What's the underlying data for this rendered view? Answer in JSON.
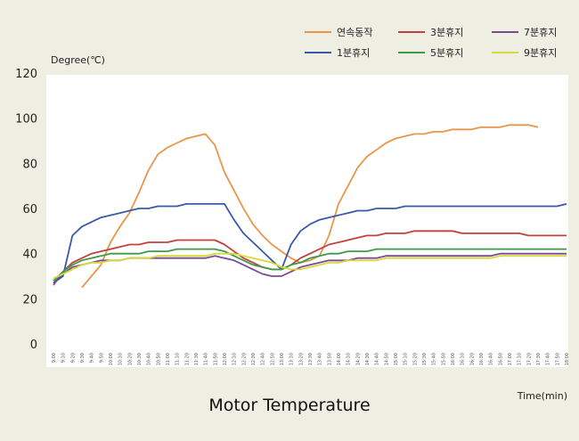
{
  "chart_data": {
    "type": "line",
    "title": "Motor Temperature",
    "ylabel": "Degree(℃)",
    "xlabel": "Time(min)",
    "ylim": [
      0,
      120
    ],
    "yticks": [
      0,
      20,
      40,
      60,
      80,
      100,
      120
    ],
    "grid": false,
    "legend_position": "top-right",
    "x": [
      "9:00",
      "9:10",
      "9:20",
      "9:30",
      "9:40",
      "9:50",
      "10:00",
      "10:10",
      "10:20",
      "10:30",
      "10:40",
      "10:50",
      "11:00",
      "11:10",
      "11:20",
      "11:30",
      "11:40",
      "11:50",
      "12:00",
      "12:10",
      "12:20",
      "12:30",
      "12:40",
      "12:50",
      "13:00",
      "13:10",
      "13:20",
      "13:30",
      "13:40",
      "13:50",
      "14:00",
      "14:10",
      "14:20",
      "14:30",
      "14:40",
      "14:50",
      "15:00",
      "15:10",
      "15:20",
      "15:30",
      "15:40",
      "15:50",
      "16:00",
      "16:10",
      "16:20",
      "16:30",
      "16:40",
      "16:50",
      "17:00",
      "17:10",
      "17:20",
      "17:30",
      "17:40",
      "17:50",
      "18:00"
    ],
    "series": [
      {
        "name": "연속동작",
        "color": "#e8964a",
        "values": [
          null,
          null,
          null,
          25,
          30,
          35,
          45,
          52,
          58,
          67,
          77,
          84,
          87,
          89,
          91,
          92,
          93,
          88,
          76,
          68,
          60,
          53,
          48,
          44,
          41,
          38,
          36,
          37,
          39,
          48,
          62,
          70,
          78,
          83,
          86,
          89,
          91,
          92,
          93,
          93,
          94,
          94,
          95,
          95,
          95,
          96,
          96,
          96,
          97,
          97,
          97,
          96,
          null,
          null,
          null
        ]
      },
      {
        "name": "3분휴지",
        "color": "#c4403c",
        "values": [
          26,
          32,
          36,
          38,
          40,
          41,
          42,
          43,
          44,
          44,
          45,
          45,
          45,
          46,
          46,
          46,
          46,
          46,
          44,
          41,
          38,
          36,
          34,
          33,
          33,
          35,
          38,
          40,
          42,
          44,
          45,
          46,
          47,
          48,
          48,
          49,
          49,
          49,
          50,
          50,
          50,
          50,
          50,
          49,
          49,
          49,
          49,
          49,
          49,
          49,
          48,
          48,
          48,
          48,
          48
        ]
      },
      {
        "name": "7분휴지",
        "color": "#7a4a95",
        "values": [
          27,
          31,
          34,
          35,
          36,
          37,
          37,
          37,
          38,
          38,
          38,
          38,
          38,
          38,
          38,
          38,
          38,
          39,
          38,
          37,
          35,
          33,
          31,
          30,
          30,
          32,
          34,
          35,
          36,
          37,
          37,
          37,
          38,
          38,
          38,
          39,
          39,
          39,
          39,
          39,
          39,
          39,
          39,
          39,
          39,
          39,
          39,
          40,
          40,
          40,
          40,
          40,
          40,
          40,
          40
        ]
      },
      {
        "name": "1분휴지",
        "color": "#3a5aa8",
        "values": [
          27,
          30,
          48,
          52,
          54,
          56,
          57,
          58,
          59,
          60,
          60,
          61,
          61,
          61,
          62,
          62,
          62,
          62,
          62,
          55,
          49,
          45,
          41,
          37,
          33,
          44,
          50,
          53,
          55,
          56,
          57,
          58,
          59,
          59,
          60,
          60,
          60,
          61,
          61,
          61,
          61,
          61,
          61,
          61,
          61,
          61,
          61,
          61,
          61,
          61,
          61,
          61,
          61,
          61,
          62
        ]
      },
      {
        "name": "5분휴지",
        "color": "#3f9a48",
        "values": [
          28,
          32,
          35,
          37,
          38,
          39,
          40,
          40,
          40,
          40,
          41,
          41,
          41,
          42,
          42,
          42,
          42,
          42,
          41,
          39,
          37,
          35,
          34,
          33,
          33,
          35,
          36,
          38,
          39,
          40,
          40,
          41,
          41,
          41,
          42,
          42,
          42,
          42,
          42,
          42,
          42,
          42,
          42,
          42,
          42,
          42,
          42,
          42,
          42,
          42,
          42,
          42,
          42,
          42,
          42
        ]
      },
      {
        "name": "9분휴지",
        "color": "#d9d83a",
        "values": [
          29,
          31,
          33,
          35,
          36,
          36,
          37,
          37,
          38,
          38,
          38,
          39,
          39,
          39,
          39,
          39,
          39,
          40,
          40,
          40,
          39,
          38,
          37,
          36,
          34,
          33,
          33,
          34,
          35,
          36,
          36,
          37,
          37,
          37,
          37,
          38,
          38,
          38,
          38,
          38,
          38,
          38,
          38,
          38,
          38,
          38,
          38,
          39,
          39,
          39,
          39,
          39,
          39,
          39,
          39
        ]
      }
    ]
  }
}
